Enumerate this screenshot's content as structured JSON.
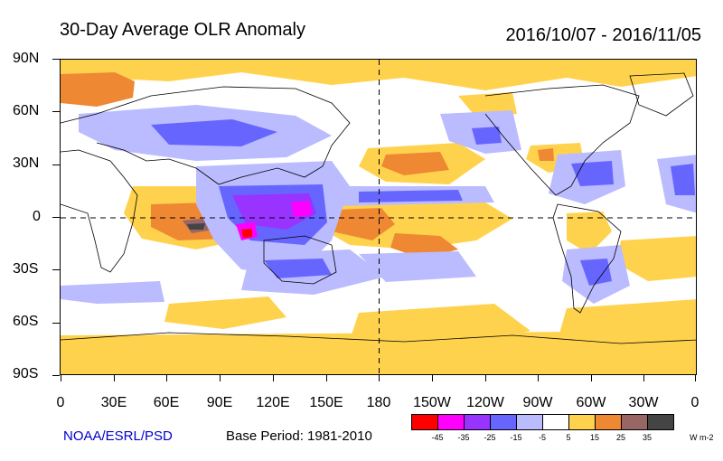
{
  "title": "30-Day Average OLR Anomaly",
  "date_range": "2016/10/07 - 2016/11/05",
  "latitude_labels": [
    "90N",
    "60N",
    "30N",
    "0",
    "30S",
    "60S",
    "90S"
  ],
  "longitude_labels": [
    "0",
    "30E",
    "60E",
    "90E",
    "120E",
    "150E",
    "180",
    "150W",
    "120W",
    "90W",
    "60W",
    "30W",
    "0"
  ],
  "credit": "NOAA/ESRL/PSD",
  "base_period": "Base Period: 1981-2010",
  "colorbar": {
    "colors": [
      "#ff0000",
      "#ff00ff",
      "#9933ff",
      "#6666ff",
      "#bbbbff",
      "#ffffff",
      "#ffd24d",
      "#ee8833",
      "#996666",
      "#444444"
    ],
    "labels": [
      "-45",
      "-35",
      "-25",
      "-15",
      "-5",
      "5",
      "15",
      "25",
      "35"
    ],
    "units": "W m-2"
  }
}
